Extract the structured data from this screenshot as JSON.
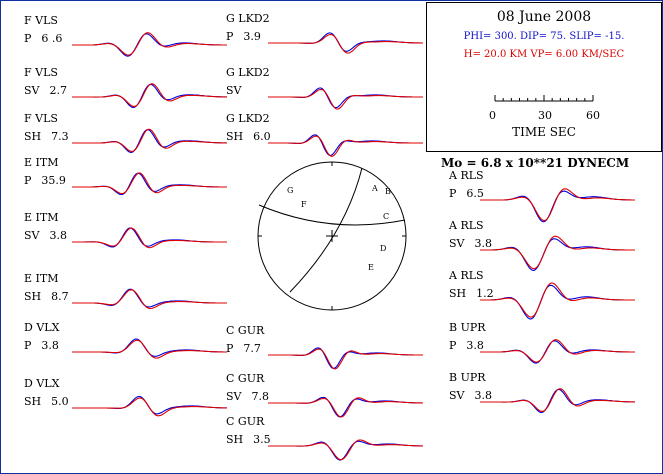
{
  "chart_data": {
    "type": "line",
    "title": "08 June 2008",
    "mechanism": {
      "phi": 300,
      "dip": 75,
      "slip": -15,
      "depth_km": 20.0,
      "vp_km_s": 6.0
    },
    "text": {
      "params_line": "PHI= 300. DIP= 75. SLIP= -15.",
      "hvp_line": "H= 20.0 KM  VP= 6.00 KM/SEC",
      "moment_line": "Mo =  6.8 x 10**21 DYNECM",
      "time_axis_label": "TIME   SEC",
      "time_ticks": [
        "0",
        "30",
        "60"
      ]
    },
    "time_axis_range_s": [
      0,
      60
    ],
    "series": [
      {
        "name": "observed",
        "color": "#0000dd"
      },
      {
        "name": "synthetic",
        "color": "#dd0000"
      }
    ],
    "waveforms": [
      {
        "station": "F VLS",
        "phase": "P",
        "amp": "6 .6",
        "col": 0,
        "row": 0
      },
      {
        "station": "F VLS",
        "phase": "SV",
        "amp": "2.7",
        "col": 0,
        "row": 1
      },
      {
        "station": "F VLS",
        "phase": "SH",
        "amp": "7.3",
        "col": 0,
        "row": 2
      },
      {
        "station": "E ITM",
        "phase": "P",
        "amp": "35.9",
        "col": 0,
        "row": 3
      },
      {
        "station": "E ITM",
        "phase": "SV",
        "amp": "3.8",
        "col": 0,
        "row": 4
      },
      {
        "station": "E ITM",
        "phase": "SH",
        "amp": "8.7",
        "col": 0,
        "row": 5
      },
      {
        "station": "D VLX",
        "phase": "P",
        "amp": "3.8",
        "col": 0,
        "row": 6
      },
      {
        "station": "D VLX",
        "phase": "SH",
        "amp": "5.0",
        "col": 0,
        "row": 7
      },
      {
        "station": "G LKD2",
        "phase": "P",
        "amp": "3.9",
        "col": 1,
        "row": 0
      },
      {
        "station": "G LKD2",
        "phase": "SV",
        "amp": "",
        "col": 1,
        "row": 1
      },
      {
        "station": "G LKD2",
        "phase": "SH",
        "amp": "6.0",
        "col": 1,
        "row": 2
      },
      {
        "station": "C GUR",
        "phase": "P",
        "amp": "7.7",
        "col": 1,
        "row": 3
      },
      {
        "station": "C GUR",
        "phase": "SV",
        "amp": "7.8",
        "col": 1,
        "row": 4
      },
      {
        "station": "C GUR",
        "phase": "SH",
        "amp": "3.5",
        "col": 1,
        "row": 5
      },
      {
        "station": "A RLS",
        "phase": "P",
        "amp": "6.5",
        "col": 2,
        "row": 0
      },
      {
        "station": "A RLS",
        "phase": "SV",
        "amp": "3.8",
        "col": 2,
        "row": 1
      },
      {
        "station": "A RLS",
        "phase": "SH",
        "amp": "1.2",
        "col": 2,
        "row": 2
      },
      {
        "station": "B UPR",
        "phase": "P",
        "amp": "3.8",
        "col": 2,
        "row": 3
      },
      {
        "station": "B UPR",
        "phase": "SV",
        "amp": "3.8",
        "col": 2,
        "row": 4
      }
    ],
    "focal_sphere_labels": [
      "A",
      "B",
      "C",
      "D",
      "E",
      "F",
      "G"
    ]
  }
}
